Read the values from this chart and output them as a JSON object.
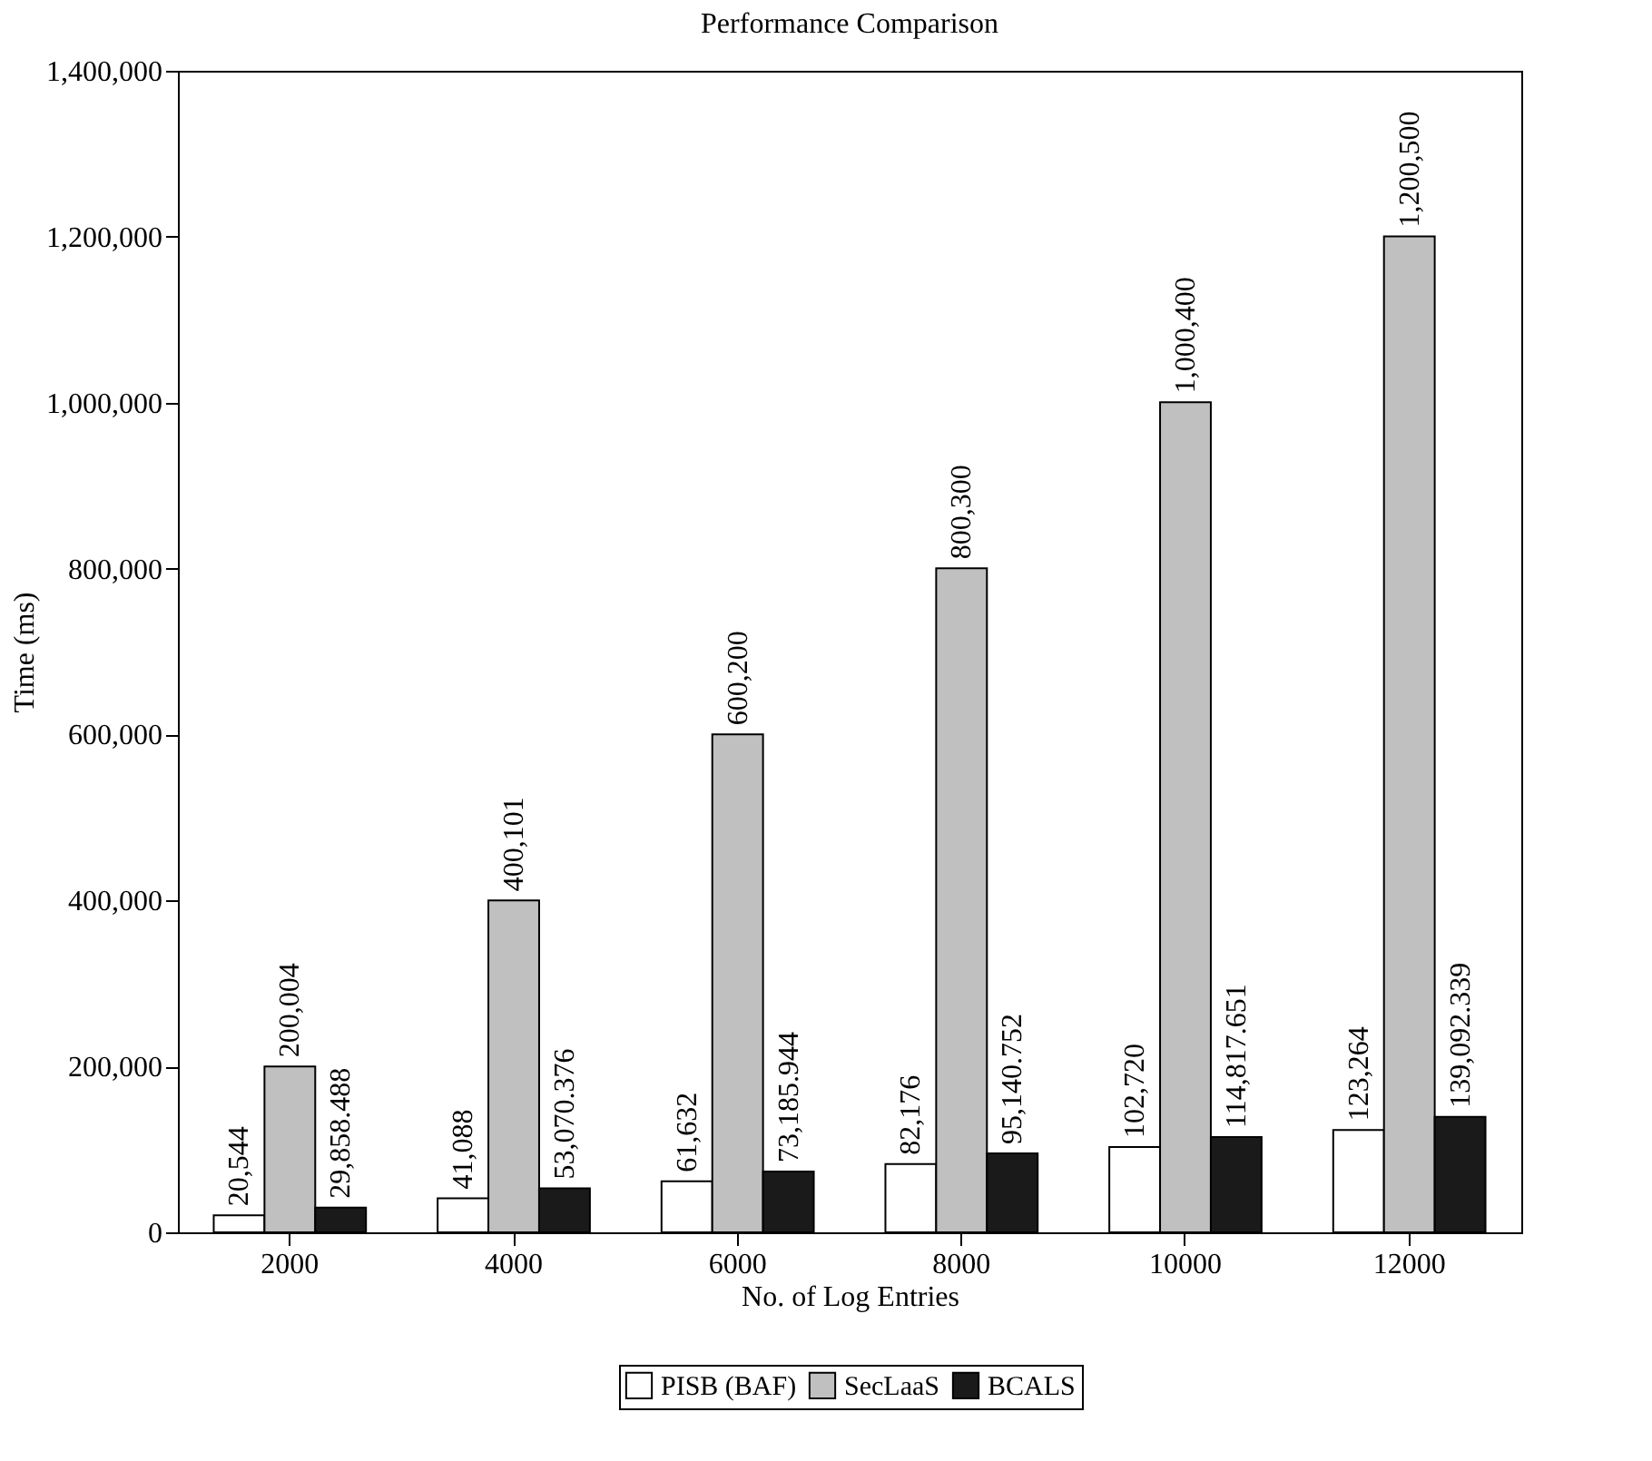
{
  "chart_data": {
    "type": "bar",
    "title": "Performance Comparison",
    "xlabel": "No. of Log Entries",
    "ylabel": "Time (ms)",
    "categories": [
      "2000",
      "4000",
      "6000",
      "8000",
      "10000",
      "12000"
    ],
    "series": [
      {
        "name": "PISB (BAF)",
        "color": "#ffffff",
        "values": [
          20544,
          41088,
          61632,
          82176,
          102720,
          123264
        ],
        "value_labels": [
          "20,544",
          "41,088",
          "61,632",
          "82,176",
          "102,720",
          "123,264"
        ]
      },
      {
        "name": "SecLaaS",
        "color": "#c0c0c0",
        "values": [
          200004,
          400101,
          600200,
          800300,
          1000400,
          1200500
        ],
        "value_labels": [
          "200,004",
          "400,101",
          "600,200",
          "800,300",
          "1,000,400",
          "1,200,500"
        ]
      },
      {
        "name": "BCALS",
        "color": "#1a1a1a",
        "values": [
          29858.488,
          53070.376,
          73185.944,
          95140.752,
          114817.651,
          139092.339
        ],
        "value_labels": [
          "29,858.488",
          "53,070.376",
          "73,185.944",
          "95,140.752",
          "114,817.651",
          "139,092.339"
        ]
      }
    ],
    "ylim": [
      0,
      1400000
    ],
    "yticks": [
      0,
      {
        "value": 200000,
        "label": "200,000"
      },
      {
        "value": 400000,
        "label": "400,000"
      },
      {
        "value": 600000,
        "label": "600,000"
      },
      {
        "value": 800000,
        "label": "800,000"
      },
      {
        "value": 1000000,
        "label": "1,000,000"
      },
      {
        "value": 1200000,
        "label": "1,200,000"
      },
      {
        "value": 1400000,
        "label": "1,400,000"
      }
    ],
    "grid": false,
    "legend": "bottom"
  }
}
